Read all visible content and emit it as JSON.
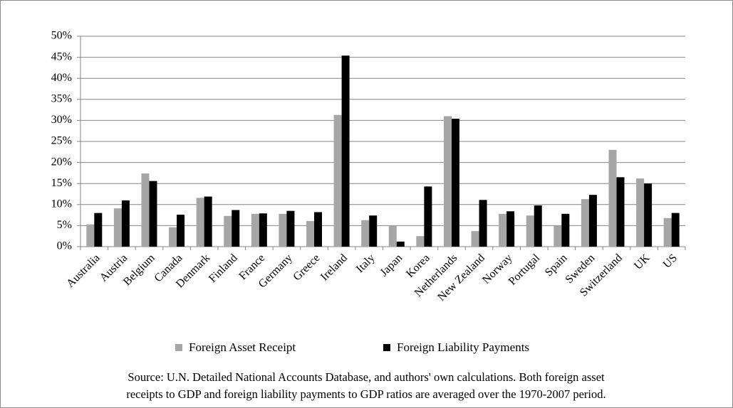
{
  "chart_data": {
    "type": "bar",
    "categories": [
      "Australia",
      "Austria",
      "Belgium",
      "Canada",
      "Denmark",
      "Finland",
      "France",
      "Germany",
      "Greece",
      "Ireland",
      "Italy",
      "Japan",
      "Korea",
      "Netherlands",
      "New Zealand",
      "Norway",
      "Portugal",
      "Spain",
      "Sweden",
      "Switzerland",
      "UK",
      "US"
    ],
    "series": [
      {
        "name": "Foreign Asset Receipt",
        "color": "#a6a6a6",
        "values": [
          5.3,
          9.1,
          17.4,
          4.6,
          11.6,
          7.3,
          7.8,
          7.8,
          6.1,
          31.3,
          6.3,
          4.9,
          2.5,
          31.0,
          3.7,
          7.8,
          7.4,
          4.9,
          11.3,
          23.0,
          16.2,
          6.8
        ]
      },
      {
        "name": "Foreign Liability Payments",
        "color": "#000000",
        "values": [
          8.0,
          11.0,
          15.6,
          7.6,
          11.9,
          8.7,
          7.9,
          8.5,
          8.2,
          45.4,
          7.4,
          1.2,
          14.3,
          30.4,
          11.1,
          8.4,
          9.8,
          7.8,
          12.3,
          16.5,
          15.0,
          8.0
        ]
      }
    ],
    "ylim": [
      0,
      50
    ],
    "yticks": [
      {
        "value": 0,
        "label": "0%"
      },
      {
        "value": 5,
        "label": "5%"
      },
      {
        "value": 10,
        "label": "10%"
      },
      {
        "value": 15,
        "label": "15%"
      },
      {
        "value": 20,
        "label": "20%"
      },
      {
        "value": 25,
        "label": "25%"
      },
      {
        "value": 30,
        "label": "30%"
      },
      {
        "value": 35,
        "label": "35%"
      },
      {
        "value": 40,
        "label": "40%"
      },
      {
        "value": 45,
        "label": "45%"
      },
      {
        "value": 50,
        "label": "50%"
      }
    ],
    "grid": true,
    "legend": "bottom",
    "source": [
      "Source: U.N. Detailed National Accounts Database, and authors' own calculations. Both foreign asset",
      "receipts to GDP and foreign liability payments to GDP ratios are averaged over the 1970-2007 period."
    ]
  }
}
